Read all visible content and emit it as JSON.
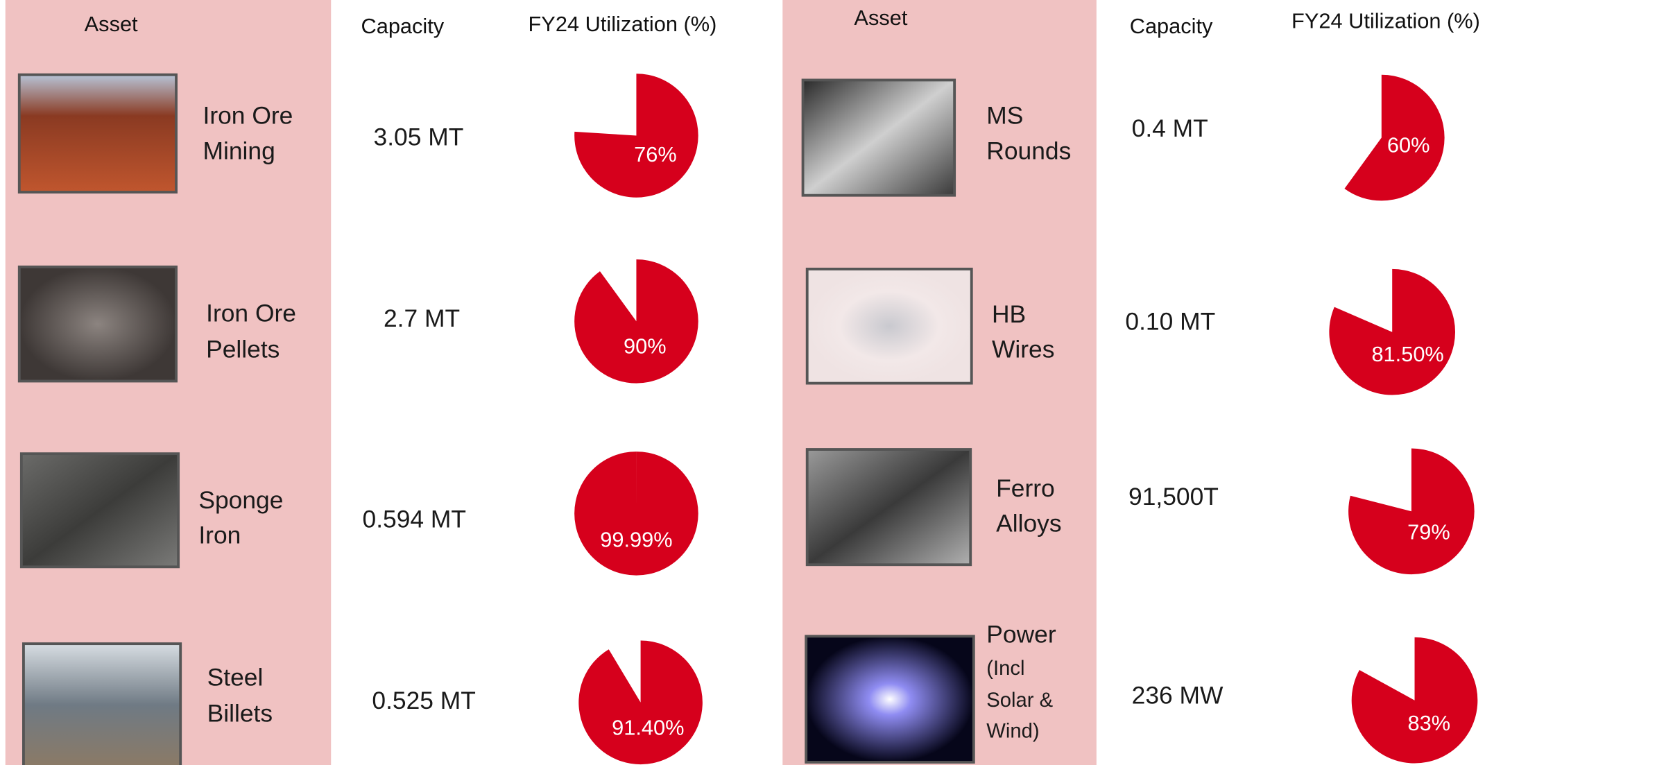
{
  "panels": [
    {
      "header": {
        "asset": "Asset",
        "capacity": "Capacity",
        "utilization": "FY24 Utilization (%)"
      },
      "rows": [
        {
          "asset": [
            "Iron Ore",
            "Mining"
          ],
          "capacity": "3.05 MT",
          "utilization": 76,
          "utilization_label": "76%"
        },
        {
          "asset": [
            "Iron Ore",
            "Pellets"
          ],
          "capacity": "2.7 MT",
          "utilization": 90,
          "utilization_label": "90%"
        },
        {
          "asset": [
            "Sponge",
            "Iron"
          ],
          "capacity": "0.594 MT",
          "utilization": 99.99,
          "utilization_label": "99.99%"
        },
        {
          "asset": [
            "Steel",
            "Billets"
          ],
          "capacity": "0.525 MT",
          "utilization": 91.4,
          "utilization_label": "91.40%"
        }
      ]
    },
    {
      "header": {
        "asset": "Asset",
        "capacity": "Capacity",
        "utilization": "FY24 Utilization (%)"
      },
      "rows": [
        {
          "asset": [
            "MS",
            "Rounds"
          ],
          "capacity": "0.4 MT",
          "utilization": 60,
          "utilization_label": "60%"
        },
        {
          "asset": [
            "HB",
            "Wires"
          ],
          "capacity": "0.10 MT",
          "utilization": 81.5,
          "utilization_label": "81.50%"
        },
        {
          "asset": [
            "Ferro",
            "Alloys"
          ],
          "capacity": "91,500T",
          "utilization": 79,
          "utilization_label": "79%"
        },
        {
          "asset": [
            "Power",
            "(Incl",
            "Solar &",
            "Wind)"
          ],
          "capacity": "236 MW",
          "utilization": 83,
          "utilization_label": "83%"
        }
      ]
    }
  ]
}
